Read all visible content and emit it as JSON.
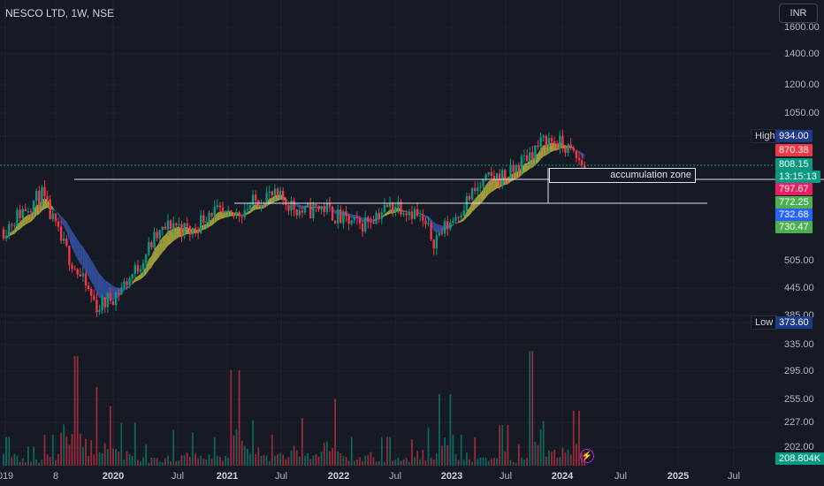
{
  "header": {
    "symbol": "NESCO LTD, 1W, NSE"
  },
  "currency": "INR",
  "annotation": {
    "label": "accumulation zone"
  },
  "price_axis": [
    "1600.00",
    "1400.00",
    "1200.00",
    "1050.00",
    "505.00",
    "445.00",
    "385.00",
    "335.00",
    "295.00",
    "255.00",
    "227.00",
    "202.00"
  ],
  "price_tags": [
    {
      "value": "870.38",
      "color": "#f23645"
    },
    {
      "value": "808.15",
      "sub": "13:15:13",
      "color": "#089981"
    },
    {
      "value": "797.67",
      "color": "#e91e63"
    },
    {
      "value": "772.25",
      "color": "#4caf50"
    },
    {
      "value": "732.68",
      "color": "#2962ff"
    },
    {
      "value": "730.47",
      "color": "#4caf50"
    },
    {
      "value": "208.804K",
      "color": "#089981"
    }
  ],
  "high": {
    "label": "High",
    "value": "934.00"
  },
  "low": {
    "label": "Low",
    "value": "373.60"
  },
  "time_axis": [
    "019",
    "8",
    "2020",
    "Jul",
    "2021",
    "Jul",
    "2022",
    "Jul",
    "2023",
    "Jul",
    "2024",
    "Jul",
    "2025",
    "Jul"
  ],
  "colors": {
    "up": "#089981",
    "down": "#f23645",
    "ribbon_up": "#b5b33d",
    "ribbon_down": "#3654a8",
    "ribbon_neutral": "#7a7d87"
  },
  "chart_data": {
    "type": "candlestick",
    "title": "NESCO LTD, 1W, NSE",
    "scale": "log",
    "ylim": [
      335,
      1600
    ],
    "x": [
      "2019-12",
      "2020-01",
      "2020-02",
      "2020-03",
      "2020-04",
      "2020-05",
      "2020-06",
      "2020-07",
      "2020-09",
      "2020-11",
      "2021-01",
      "2021-03",
      "2021-05",
      "2021-07",
      "2021-09",
      "2021-11",
      "2022-01",
      "2022-03",
      "2022-05",
      "2022-07",
      "2022-09",
      "2022-11",
      "2023-01",
      "2023-03",
      "2023-05",
      "2023-07",
      "2023-09",
      "2023-10",
      "2023-11",
      "2024-01",
      "2024-02",
      "2024-03"
    ],
    "close": [
      590,
      650,
      700,
      560,
      470,
      400,
      430,
      480,
      560,
      610,
      580,
      650,
      620,
      660,
      700,
      680,
      640,
      660,
      620,
      600,
      640,
      670,
      640,
      560,
      620,
      700,
      760,
      770,
      850,
      920,
      890,
      808
    ],
    "high_price": 934.0,
    "low_price": 373.6,
    "last_close": 808.15,
    "ma_levels": [
      797.67,
      772.25,
      732.68,
      730.47
    ],
    "last_volume": "208.804K",
    "volume": [
      120,
      80,
      130,
      460,
      330,
      250,
      180,
      90,
      110,
      150,
      140,
      120,
      400,
      190,
      130,
      200,
      140,
      280,
      120,
      140,
      120,
      110,
      160,
      300,
      130,
      120,
      170,
      90,
      480,
      200,
      230,
      180
    ],
    "annotations": [
      "accumulation zone"
    ]
  }
}
